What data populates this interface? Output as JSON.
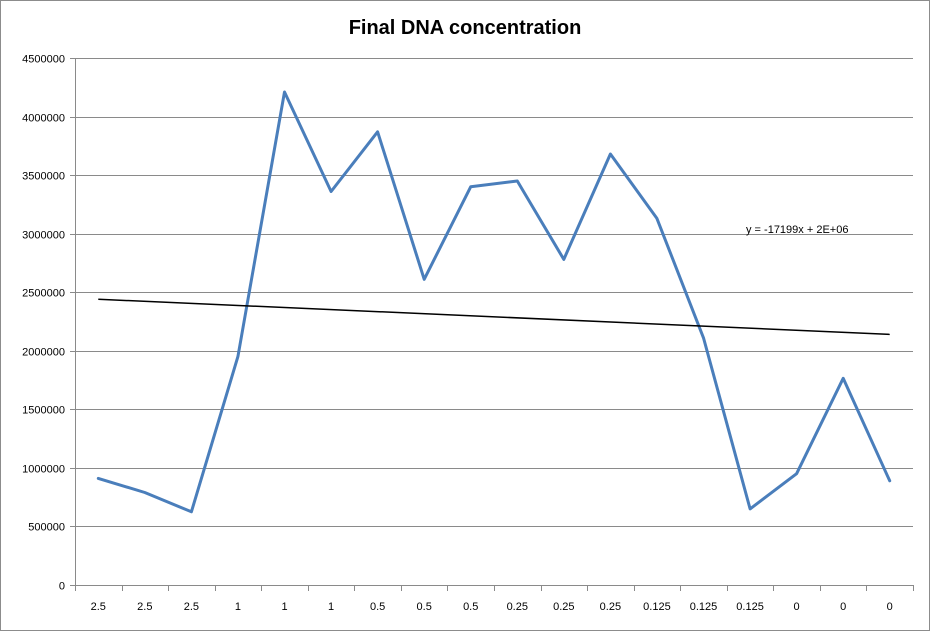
{
  "chart_data": {
    "type": "line",
    "title": "Final DNA concentration",
    "xlabel": "",
    "ylabel": "",
    "categories": [
      "2.5",
      "2.5",
      "2.5",
      "1",
      "1",
      "1",
      "0.5",
      "0.5",
      "0.5",
      "0.25",
      "0.25",
      "0.25",
      "0.125",
      "0.125",
      "0.125",
      "0",
      "0",
      "0"
    ],
    "series": [
      {
        "values": [
          910000,
          790000,
          625000,
          1950000,
          4210000,
          3360000,
          3870000,
          2610000,
          3400000,
          3450000,
          2780000,
          3680000,
          3130000,
          2110000,
          650000,
          950000,
          1765000,
          890000
        ],
        "color": "#4a7ebb"
      }
    ],
    "trendline": {
      "type": "linear",
      "equation": "y = -17199x + 2E+06",
      "start_value": 2440000,
      "end_value": 2140000,
      "color": "#000000"
    },
    "y_ticks": [
      "0",
      "500000",
      "1000000",
      "1500000",
      "2000000",
      "2500000",
      "3000000",
      "3500000",
      "4000000",
      "4500000"
    ],
    "ylim": [
      0,
      4500000
    ],
    "grid": "horizontal",
    "legend": "none"
  }
}
